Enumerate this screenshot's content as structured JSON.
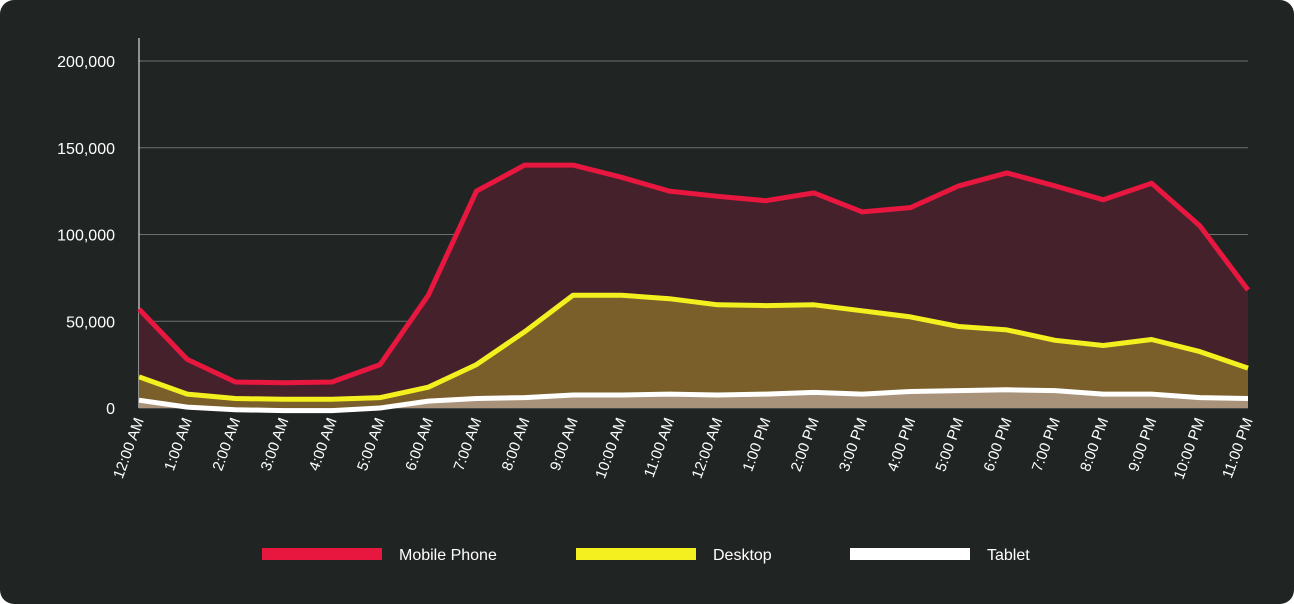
{
  "chart_data": {
    "type": "area",
    "title": "",
    "xlabel": "",
    "ylabel": "",
    "ylim": [
      0,
      200000
    ],
    "yticks": [
      0,
      50000,
      100000,
      150000,
      200000
    ],
    "ytick_labels": [
      "0",
      "50,000",
      "100,000",
      "150,000",
      "200,000"
    ],
    "grid": true,
    "legend_position": "bottom",
    "categories": [
      "12:00 AM",
      "1:00 AM",
      "2:00 AM",
      "3:00 AM",
      "4:00 AM",
      "5:00 AM",
      "6:00 AM",
      "7:00 AM",
      "8:00 AM",
      "9:00 AM",
      "10:00 AM",
      "11:00 AM",
      "12:00 AM",
      "1:00 PM",
      "2:00 PM",
      "3:00 PM",
      "4:00 PM",
      "5:00 PM",
      "6:00 PM",
      "7:00 PM",
      "8:00 PM",
      "9:00 PM",
      "10:00 PM",
      "11:00 PM"
    ],
    "series": [
      {
        "name": "Mobile Phone",
        "color": "#e8173f",
        "fill": "#45222b",
        "values": [
          57000,
          28000,
          15000,
          14500,
          15000,
          25000,
          65000,
          125000,
          140000,
          140000,
          133000,
          125000,
          122000,
          119500,
          124000,
          113000,
          115500,
          128000,
          135500,
          128000,
          120000,
          129500,
          105000,
          68000
        ]
      },
      {
        "name": "Desktop",
        "color": "#f4f01f",
        "fill": "#7a5f2b",
        "values": [
          18000,
          8000,
          5500,
          5000,
          5000,
          6000,
          12000,
          25000,
          44000,
          65000,
          65000,
          63000,
          59500,
          59000,
          59500,
          56000,
          52500,
          47000,
          45000,
          39000,
          36000,
          39500,
          32500,
          23000
        ]
      },
      {
        "name": "Tablet",
        "color": "#ffffff",
        "fill": "#a8927a",
        "values": [
          4500,
          500,
          -1000,
          -1500,
          -1500,
          0,
          4000,
          5500,
          6000,
          7500,
          7500,
          8000,
          7500,
          8000,
          9000,
          8000,
          9500,
          10000,
          10500,
          10000,
          8000,
          8000,
          6000,
          5500
        ]
      }
    ]
  }
}
